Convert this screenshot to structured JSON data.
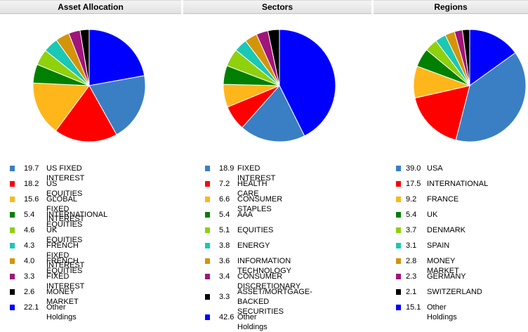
{
  "chart_data": [
    {
      "type": "pie",
      "title": "Asset Allocation",
      "slices": [
        {
          "value": 19.7,
          "label": "US FIXED INTEREST",
          "color": "#3a7fc4"
        },
        {
          "value": 18.2,
          "label": "US EQUITIES",
          "color": "#ff0000"
        },
        {
          "value": 15.6,
          "label": "GLOBAL FIXED INTEREST",
          "color": "#ffb61a"
        },
        {
          "value": 5.4,
          "label": "INTERNATIONAL EQUITIES",
          "color": "#008000"
        },
        {
          "value": 4.6,
          "label": "UK EQUITIES",
          "color": "#8ed10c"
        },
        {
          "value": 4.3,
          "label": "FRENCH FIXED INTEREST",
          "color": "#1bc7b5"
        },
        {
          "value": 4.0,
          "label": "FRENCH EQUITIES",
          "color": "#d4940a"
        },
        {
          "value": 3.3,
          "label": "FIXED INTEREST",
          "color": "#a0157c"
        },
        {
          "value": 2.6,
          "label": "MONEY MARKET",
          "color": "#000000"
        },
        {
          "value": 22.1,
          "label": "Other Holdings",
          "color": "#0000ff"
        }
      ]
    },
    {
      "type": "pie",
      "title": "Sectors",
      "slices": [
        {
          "value": 18.9,
          "label": "FIXED INTEREST",
          "color": "#3a7fc4"
        },
        {
          "value": 7.2,
          "label": "HEALTH CARE",
          "color": "#ff0000"
        },
        {
          "value": 6.6,
          "label": "CONSUMER STAPLES",
          "color": "#ffb61a"
        },
        {
          "value": 5.4,
          "label": "AAA",
          "color": "#008000"
        },
        {
          "value": 5.1,
          "label": "EQUITIES",
          "color": "#8ed10c"
        },
        {
          "value": 3.8,
          "label": "ENERGY",
          "color": "#1bc7b5"
        },
        {
          "value": 3.6,
          "label": "INFORMATION TECHNOLOGY",
          "color": "#d4940a"
        },
        {
          "value": 3.4,
          "label": "CONSUMER DISCRETIONARY",
          "color": "#a0157c"
        },
        {
          "value": 3.3,
          "label": "ASSET/MORTGAGE-BACKED\nSECURITIES",
          "color": "#000000"
        },
        {
          "value": 42.6,
          "label": "Other Holdings",
          "color": "#0000ff"
        }
      ]
    },
    {
      "type": "pie",
      "title": "Regions",
      "slices": [
        {
          "value": 39.0,
          "label": "USA",
          "color": "#3a7fc4"
        },
        {
          "value": 17.5,
          "label": "INTERNATIONAL",
          "color": "#ff0000"
        },
        {
          "value": 9.2,
          "label": "FRANCE",
          "color": "#ffb61a"
        },
        {
          "value": 5.4,
          "label": "UK",
          "color": "#008000"
        },
        {
          "value": 3.7,
          "label": "DENMARK",
          "color": "#8ed10c"
        },
        {
          "value": 3.1,
          "label": "SPAIN",
          "color": "#1bc7b5"
        },
        {
          "value": 2.8,
          "label": "MONEY MARKET",
          "color": "#d4940a"
        },
        {
          "value": 2.3,
          "label": "GERMANY",
          "color": "#a0157c"
        },
        {
          "value": 2.1,
          "label": "SWITZERLAND",
          "color": "#000000"
        },
        {
          "value": 15.1,
          "label": "Other Holdings",
          "color": "#0000ff"
        }
      ]
    }
  ]
}
